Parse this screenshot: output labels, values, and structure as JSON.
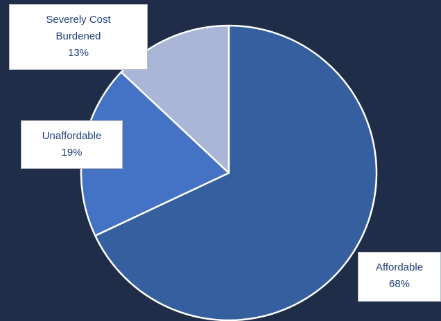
{
  "chart_data": {
    "type": "pie",
    "title": "",
    "slices": [
      {
        "label_lines": [
          "Affordable"
        ],
        "value": 68,
        "value_label": "68%",
        "color": "#365f9f"
      },
      {
        "label_lines": [
          "Unaffordable"
        ],
        "value": 19,
        "value_label": "19%",
        "color": "#4472c4"
      },
      {
        "label_lines": [
          "Severely Cost",
          "Burdened"
        ],
        "value": 13,
        "value_label": "13%",
        "color": "#a9b6d8"
      }
    ],
    "start_angle_deg": 0,
    "direction": "clockwise",
    "slice_border_color": "#ffffff",
    "background_color": "#1f2d48",
    "label_text_color": "#1f3f78"
  }
}
